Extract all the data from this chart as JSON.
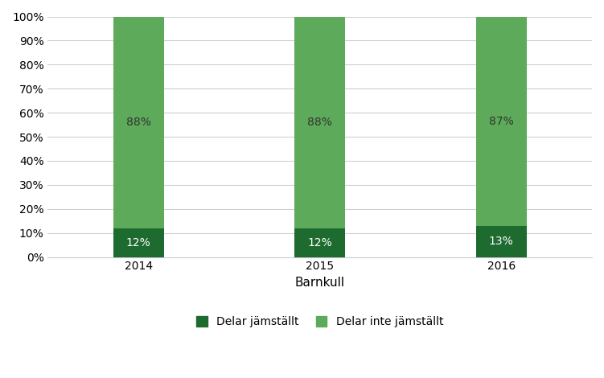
{
  "categories": [
    "2014",
    "2015",
    "2016"
  ],
  "delar_jamstallt": [
    12,
    12,
    13
  ],
  "delar_inte_jamstallt": [
    88,
    88,
    87
  ],
  "color_dark_green": "#1E6B30",
  "color_light_green": "#5DAB5A",
  "xlabel": "Barnkull",
  "ylabel_ticks": [
    "0%",
    "10%",
    "20%",
    "30%",
    "40%",
    "50%",
    "60%",
    "70%",
    "80%",
    "90%",
    "100%"
  ],
  "legend_label_1": "Delar jämställt",
  "legend_label_2": "Delar inte jämställt",
  "bar_width": 0.28,
  "background_color": "#ffffff",
  "grid_color": "#d0d0d0",
  "label_fontsize": 10,
  "tick_fontsize": 10,
  "xlabel_fontsize": 11,
  "text_color_top": "#333333",
  "text_color_bottom": "#ffffff"
}
